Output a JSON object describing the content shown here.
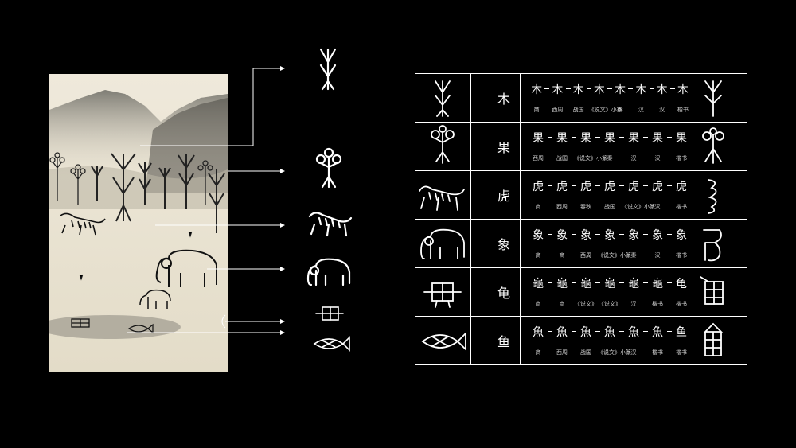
{
  "colors": {
    "background": "#000000",
    "line": "#ffffff",
    "paper": "#e9e3d2"
  },
  "rows": [
    {
      "char": "木",
      "stages": [
        "商",
        "西周",
        "战国",
        "《说文》小篆",
        "秦",
        "汉",
        "汉",
        "楷书"
      ]
    },
    {
      "char": "果",
      "stages": [
        "西周",
        "战国",
        "《说文》小篆",
        "秦",
        "汉",
        "汉",
        "楷书"
      ]
    },
    {
      "char": "虎",
      "stages": [
        "商",
        "西周",
        "春秋",
        "战国",
        "《说文》小篆",
        "汉",
        "楷书"
      ]
    },
    {
      "char": "象",
      "stages": [
        "商",
        "商",
        "西周",
        "《说文》小篆",
        "秦",
        "汉",
        "楷书"
      ]
    },
    {
      "char": "龟",
      "stages": [
        "商",
        "商",
        "《说文》",
        "《说文》",
        "汉",
        "楷书",
        "楷书"
      ]
    },
    {
      "char": "鱼",
      "stages": [
        "商",
        "西周",
        "战国",
        "《说文》小篆",
        "汉",
        "楷书",
        "楷书"
      ]
    }
  ],
  "evolution_glyphs": [
    [
      "木",
      "木",
      "木",
      "木",
      "木",
      "木",
      "木",
      "木"
    ],
    [
      "果",
      "果",
      "果",
      "果",
      "果",
      "果",
      "果"
    ],
    [
      "虎",
      "虎",
      "虎",
      "虎",
      "虎",
      "虎",
      "虎"
    ],
    [
      "象",
      "象",
      "象",
      "象",
      "象",
      "象",
      "象"
    ],
    [
      "龜",
      "龜",
      "龜",
      "龜",
      "龜",
      "龜",
      "龟"
    ],
    [
      "魚",
      "魚",
      "魚",
      "魚",
      "魚",
      "魚",
      "鱼"
    ]
  ]
}
